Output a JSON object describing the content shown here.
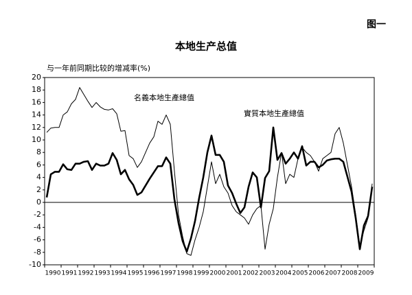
{
  "chart_data": {
    "type": "line",
    "figure_label": "图一",
    "title": "本地生产总值",
    "y_label": "与一年前同期比较的增减率(%)",
    "categories": [
      null,
      "1990",
      null,
      null,
      null,
      "1991",
      null,
      null,
      null,
      "1992",
      null,
      null,
      null,
      "1993",
      null,
      null,
      null,
      "1994",
      null,
      null,
      null,
      "1995",
      null,
      null,
      null,
      "1996",
      null,
      null,
      null,
      "1997",
      null,
      null,
      null,
      "1998",
      null,
      null,
      null,
      "1999",
      null,
      null,
      null,
      "2000",
      null,
      null,
      null,
      "2001",
      null,
      null,
      null,
      "2002",
      null,
      null,
      null,
      "2003",
      null,
      null,
      null,
      "2004",
      null,
      null,
      null,
      "2005",
      null,
      null,
      null,
      "2006",
      null,
      null,
      null,
      "2007",
      null,
      null,
      null,
      "2008",
      null,
      null,
      null,
      "2009",
      null,
      null
    ],
    "series": [
      {
        "name": "名義本地生產總值",
        "color": "#000000",
        "width": 1,
        "values": [
          11.2,
          11.9,
          12.0,
          12.0,
          14.0,
          14.5,
          15.8,
          16.5,
          18.4,
          17.3,
          16.2,
          15.2,
          16.0,
          15.3,
          14.9,
          14.8,
          15.0,
          14.2,
          11.4,
          11.5,
          7.5,
          7.0,
          5.6,
          6.5,
          8.0,
          9.5,
          10.5,
          13.0,
          12.5,
          14.0,
          12.5,
          5.0,
          -2.0,
          -5.5,
          -8.2,
          -8.5,
          -6.0,
          -4.0,
          -1.5,
          2.5,
          6.5,
          3.0,
          4.5,
          2.5,
          1.5,
          -0.5,
          -1.5,
          -2.0,
          -2.5,
          -3.5,
          -2.0,
          -1.0,
          -0.5,
          -7.5,
          -3.5,
          -1.0,
          4.0,
          8.0,
          3.0,
          4.5,
          4.0,
          7.0,
          8.8,
          8.0,
          7.5,
          6.5,
          5.0,
          7.0,
          7.5,
          8.0,
          11.0,
          12.0,
          9.5,
          6.0,
          2.5,
          -2.0,
          -7.0,
          -4.5,
          -2.5,
          3.0
        ]
      },
      {
        "name": "實質本地生產總值",
        "color": "#000000",
        "width": 2.6,
        "values": [
          0.8,
          4.5,
          4.9,
          4.9,
          6.1,
          5.3,
          5.2,
          6.2,
          6.2,
          6.5,
          6.6,
          5.2,
          6.2,
          5.9,
          5.9,
          6.2,
          7.9,
          6.8,
          4.5,
          5.2,
          3.7,
          2.8,
          1.2,
          1.6,
          2.7,
          3.8,
          4.8,
          5.8,
          5.8,
          7.2,
          6.2,
          0.5,
          -3.3,
          -6.2,
          -7.9,
          -5.8,
          -3.0,
          0.7,
          4.0,
          8.0,
          10.7,
          7.6,
          7.6,
          6.5,
          2.7,
          1.5,
          -0.2,
          -1.7,
          -0.8,
          2.5,
          4.8,
          4.0,
          -0.8,
          3.9,
          5.0,
          12.0,
          6.8,
          7.9,
          6.2,
          7.0,
          8.0,
          7.0,
          9.0,
          5.9,
          6.5,
          6.5,
          5.6,
          6.0,
          6.7,
          6.9,
          7.0,
          7.0,
          6.5,
          4.1,
          1.7,
          -2.5,
          -7.5,
          -3.7,
          -2.2,
          2.5
        ]
      }
    ],
    "ylim": [
      -10,
      20
    ],
    "yticks": [
      -10,
      -8,
      -6,
      -4,
      -2,
      0,
      2,
      4,
      6,
      8,
      10,
      12,
      14,
      16,
      18,
      20
    ]
  }
}
